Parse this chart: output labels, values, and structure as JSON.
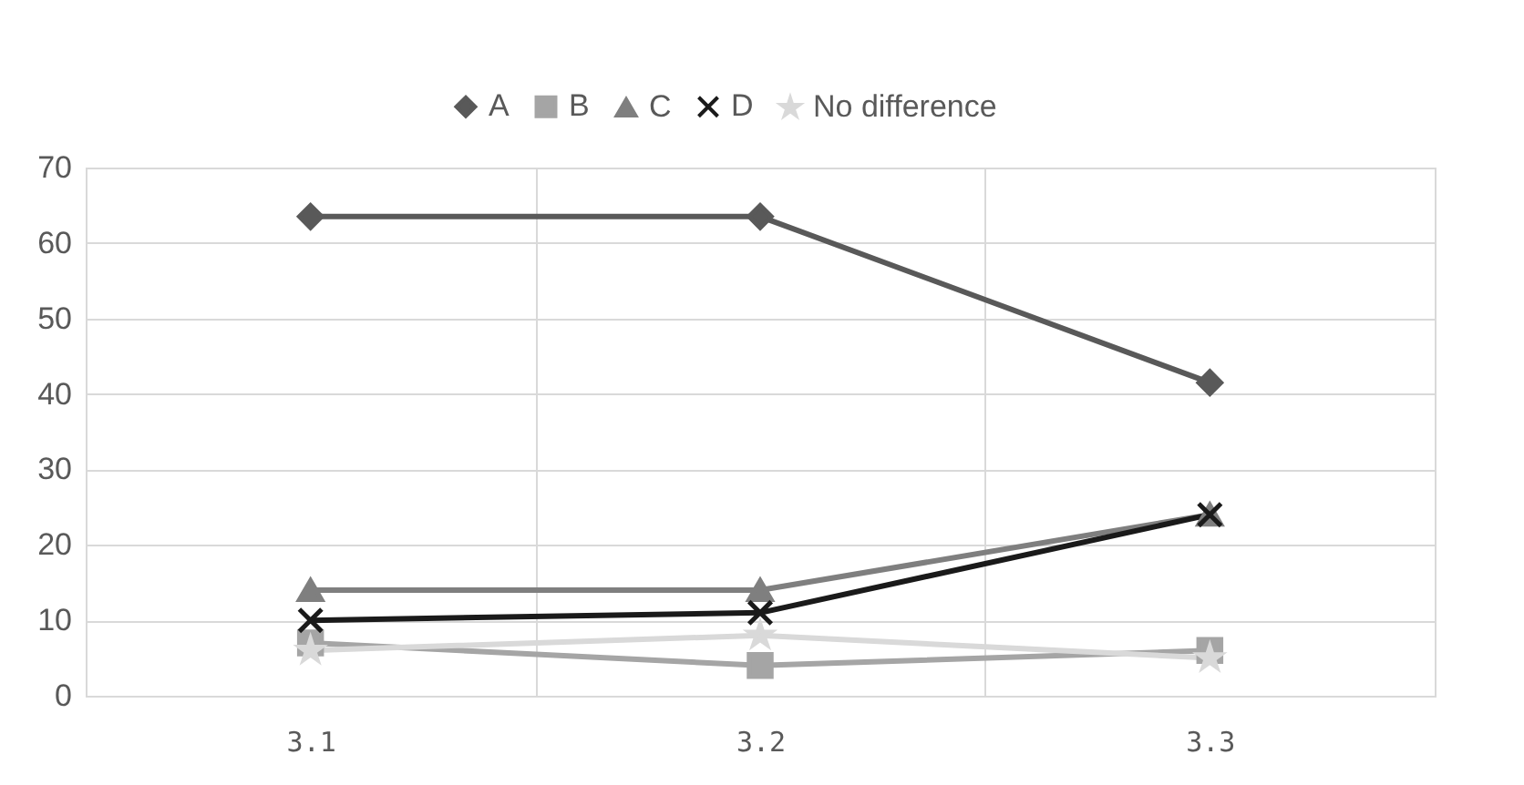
{
  "chart_data": {
    "type": "line",
    "categories": [
      "3.1",
      "3.2",
      "3.3"
    ],
    "series": [
      {
        "name": "A",
        "color": "#595959",
        "marker": "diamond",
        "values": [
          63.5,
          63.5,
          41.5
        ]
      },
      {
        "name": "B",
        "color": "#a5a5a5",
        "marker": "square",
        "values": [
          7,
          4,
          6
        ]
      },
      {
        "name": "C",
        "color": "#7f7f7f",
        "marker": "triangle",
        "values": [
          14,
          14,
          24
        ]
      },
      {
        "name": "D",
        "color": "#1a1a1a",
        "marker": "cross",
        "values": [
          10,
          11,
          24
        ]
      },
      {
        "name": "No difference",
        "color": "#d9d9d9",
        "marker": "star",
        "values": [
          6,
          8,
          5
        ]
      }
    ],
    "ylim": [
      0,
      70
    ],
    "yticks": [
      0,
      10,
      20,
      30,
      40,
      50,
      60,
      70
    ],
    "grid": true,
    "legend": "top",
    "line_style": "solid"
  }
}
